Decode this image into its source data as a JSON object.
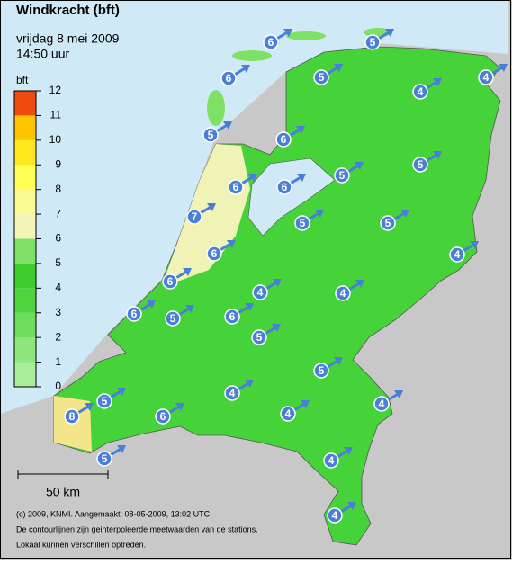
{
  "header": {
    "title": "Windkracht (bft)",
    "date": "vrijdag 8 mei 2009",
    "time": "14:50 uur"
  },
  "legend": {
    "unit": "bft",
    "ticks": [
      0,
      1,
      2,
      3,
      4,
      5,
      6,
      7,
      8,
      9,
      10,
      11,
      12
    ],
    "colors": [
      "#a8ee98",
      "#8ee67c",
      "#6edd5c",
      "#4fd43e",
      "#3ecf2e",
      "#7fe066",
      "#f3f5b8",
      "#fbfa90",
      "#ffff55",
      "#ffe61f",
      "#ffc400",
      "#f04a10"
    ]
  },
  "scale": {
    "label": "50 km"
  },
  "footer": [
    "(c) 2009, KNMI. Aangemaakt: 08-05-2009, 13:02 UTC",
    "De contourlijnen zijn geinterpoleerde meetwaarden van de stations.",
    "Lokaal kunnen verschillen optreden."
  ],
  "stations": [
    6,
    5,
    6,
    5,
    4,
    4,
    5,
    6,
    5,
    6,
    6,
    5,
    7,
    5,
    5,
    6,
    4,
    6,
    4,
    4,
    6,
    5,
    6,
    5,
    5,
    4,
    4,
    4,
    5,
    8,
    6,
    4,
    5,
    4
  ]
}
